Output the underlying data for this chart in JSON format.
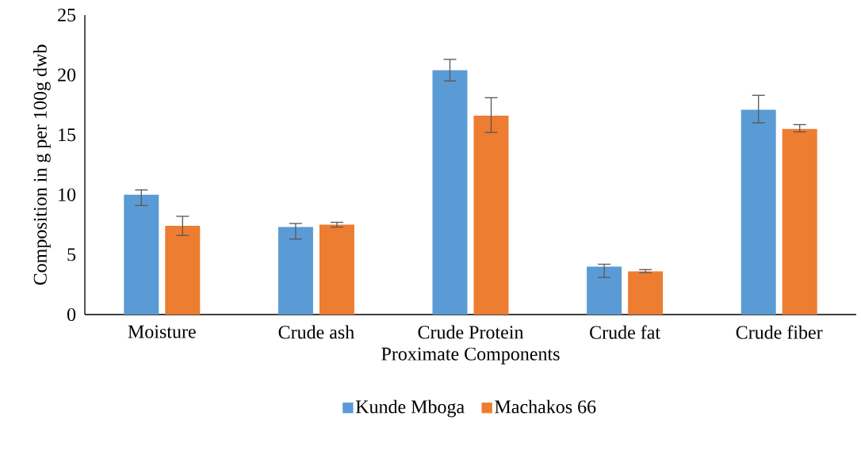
{
  "chart_data": {
    "type": "bar",
    "xlabel": "Proximate Components",
    "ylabel": "Composition in g per 100g dwb",
    "categories": [
      "Moisture",
      "Crude ash",
      "Crude Protein",
      "Crude fat",
      "Crude fiber"
    ],
    "series": [
      {
        "name": "Kunde Mboga",
        "color": "#5b9bd5",
        "values": [
          10.0,
          7.3,
          20.4,
          4.0,
          17.1
        ],
        "errors": [
          [
            9.1,
            10.4
          ],
          [
            6.3,
            7.6
          ],
          [
            19.5,
            21.3
          ],
          [
            3.1,
            4.2
          ],
          [
            16.0,
            18.3
          ]
        ]
      },
      {
        "name": "Machakos 66",
        "color": "#ed7d31",
        "values": [
          7.4,
          7.5,
          16.6,
          3.6,
          15.5
        ],
        "errors": [
          [
            6.6,
            8.2
          ],
          [
            7.3,
            7.7
          ],
          [
            15.2,
            18.1
          ],
          [
            3.5,
            3.75
          ],
          [
            15.25,
            15.85
          ]
        ]
      }
    ],
    "ylim": [
      0,
      25
    ],
    "yticks": [
      0,
      5,
      10,
      15,
      20,
      25
    ],
    "legend": "bottom"
  }
}
